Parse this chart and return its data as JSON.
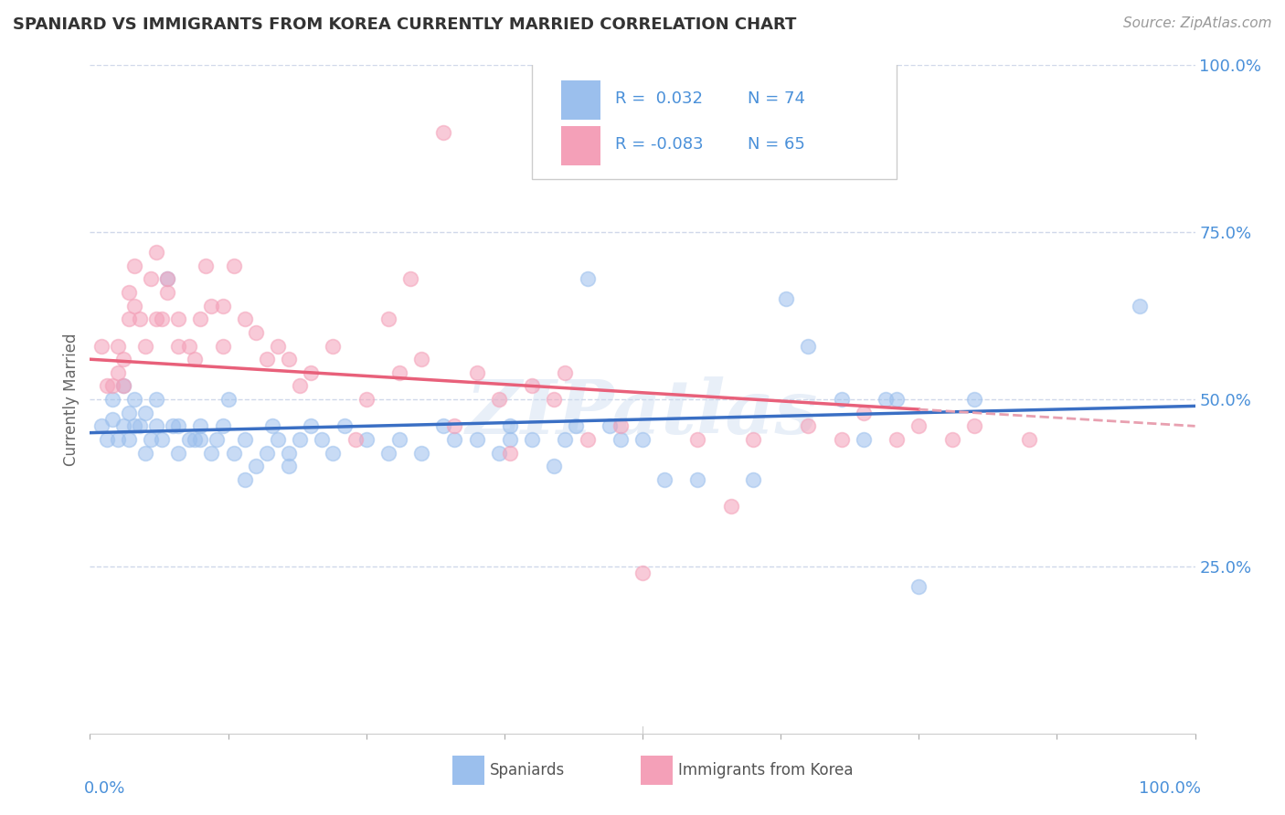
{
  "title": "SPANIARD VS IMMIGRANTS FROM KOREA CURRENTLY MARRIED CORRELATION CHART",
  "source": "Source: ZipAtlas.com",
  "ylabel": "Currently Married",
  "r_blue": 0.032,
  "n_blue": 74,
  "r_pink": -0.083,
  "n_pink": 65,
  "blue_color": "#9bbfed",
  "pink_color": "#f4a0b8",
  "trend_blue": "#3a6fc4",
  "trend_pink": "#e8607a",
  "trend_pink_dash": "#e8a0b0",
  "watermark": "ZIPatlas",
  "blue_scatter": [
    [
      1,
      46
    ],
    [
      1.5,
      44
    ],
    [
      2,
      47
    ],
    [
      2,
      50
    ],
    [
      2.5,
      44
    ],
    [
      3,
      46
    ],
    [
      3,
      52
    ],
    [
      3.5,
      44
    ],
    [
      3.5,
      48
    ],
    [
      4,
      46
    ],
    [
      4,
      50
    ],
    [
      4.5,
      46
    ],
    [
      5,
      42
    ],
    [
      5,
      48
    ],
    [
      5.5,
      44
    ],
    [
      6,
      46
    ],
    [
      6,
      50
    ],
    [
      6.5,
      44
    ],
    [
      7,
      68
    ],
    [
      7.5,
      46
    ],
    [
      8,
      42
    ],
    [
      8,
      46
    ],
    [
      9,
      44
    ],
    [
      9.5,
      44
    ],
    [
      10,
      46
    ],
    [
      10,
      44
    ],
    [
      11,
      42
    ],
    [
      11.5,
      44
    ],
    [
      12,
      46
    ],
    [
      12.5,
      50
    ],
    [
      13,
      42
    ],
    [
      14,
      44
    ],
    [
      14,
      38
    ],
    [
      15,
      40
    ],
    [
      16,
      42
    ],
    [
      16.5,
      46
    ],
    [
      17,
      44
    ],
    [
      18,
      42
    ],
    [
      18,
      40
    ],
    [
      19,
      44
    ],
    [
      20,
      46
    ],
    [
      21,
      44
    ],
    [
      22,
      42
    ],
    [
      23,
      46
    ],
    [
      25,
      44
    ],
    [
      27,
      42
    ],
    [
      28,
      44
    ],
    [
      30,
      42
    ],
    [
      32,
      46
    ],
    [
      33,
      44
    ],
    [
      35,
      44
    ],
    [
      37,
      42
    ],
    [
      38,
      46
    ],
    [
      38,
      44
    ],
    [
      40,
      44
    ],
    [
      42,
      40
    ],
    [
      43,
      44
    ],
    [
      44,
      46
    ],
    [
      45,
      68
    ],
    [
      47,
      46
    ],
    [
      48,
      44
    ],
    [
      50,
      44
    ],
    [
      52,
      38
    ],
    [
      55,
      38
    ],
    [
      60,
      38
    ],
    [
      63,
      65
    ],
    [
      65,
      58
    ],
    [
      68,
      50
    ],
    [
      70,
      44
    ],
    [
      72,
      50
    ],
    [
      73,
      50
    ],
    [
      75,
      22
    ],
    [
      80,
      50
    ],
    [
      95,
      64
    ]
  ],
  "pink_scatter": [
    [
      1,
      58
    ],
    [
      1.5,
      52
    ],
    [
      2,
      52
    ],
    [
      2.5,
      54
    ],
    [
      2.5,
      58
    ],
    [
      3,
      56
    ],
    [
      3,
      52
    ],
    [
      3.5,
      62
    ],
    [
      3.5,
      66
    ],
    [
      4,
      64
    ],
    [
      4,
      70
    ],
    [
      4.5,
      62
    ],
    [
      5,
      58
    ],
    [
      5.5,
      68
    ],
    [
      6,
      72
    ],
    [
      6,
      62
    ],
    [
      6.5,
      62
    ],
    [
      7,
      66
    ],
    [
      7,
      68
    ],
    [
      8,
      62
    ],
    [
      8,
      58
    ],
    [
      9,
      58
    ],
    [
      9.5,
      56
    ],
    [
      10,
      62
    ],
    [
      10.5,
      70
    ],
    [
      11,
      64
    ],
    [
      12,
      58
    ],
    [
      12,
      64
    ],
    [
      13,
      70
    ],
    [
      14,
      62
    ],
    [
      15,
      60
    ],
    [
      16,
      56
    ],
    [
      17,
      58
    ],
    [
      18,
      56
    ],
    [
      19,
      52
    ],
    [
      20,
      54
    ],
    [
      22,
      58
    ],
    [
      24,
      44
    ],
    [
      25,
      50
    ],
    [
      27,
      62
    ],
    [
      28,
      54
    ],
    [
      29,
      68
    ],
    [
      30,
      56
    ],
    [
      32,
      90
    ],
    [
      33,
      46
    ],
    [
      35,
      54
    ],
    [
      37,
      50
    ],
    [
      38,
      42
    ],
    [
      40,
      52
    ],
    [
      42,
      50
    ],
    [
      43,
      54
    ],
    [
      45,
      44
    ],
    [
      48,
      46
    ],
    [
      50,
      24
    ],
    [
      55,
      44
    ],
    [
      58,
      34
    ],
    [
      60,
      44
    ],
    [
      65,
      46
    ],
    [
      68,
      44
    ],
    [
      70,
      48
    ],
    [
      73,
      44
    ],
    [
      75,
      46
    ],
    [
      78,
      44
    ],
    [
      80,
      46
    ],
    [
      85,
      44
    ]
  ],
  "xlim": [
    0,
    100
  ],
  "ylim": [
    0,
    100
  ],
  "yticks": [
    0,
    25,
    50,
    75,
    100
  ],
  "grid_color": "#d0d8ea",
  "bg_color": "#ffffff",
  "title_color": "#333333",
  "axis_label_color": "#4a90d9"
}
